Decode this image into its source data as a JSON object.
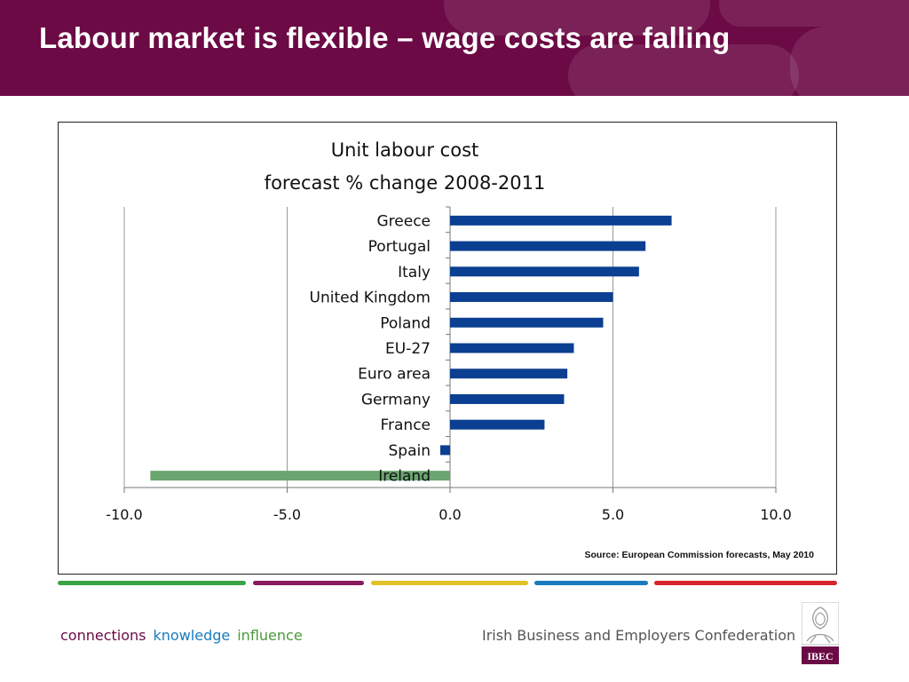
{
  "slide": {
    "title": "Labour market is flexible – wage costs are falling"
  },
  "chart_data": {
    "type": "bar",
    "orientation": "horizontal",
    "title": "Unit labour cost",
    "subtitle": "forecast % change 2008-2011",
    "categories": [
      "Greece",
      "Portugal",
      "Italy",
      "United Kingdom",
      "Poland",
      "EU-27",
      "Euro area",
      "Germany",
      "France",
      "Spain",
      "Ireland"
    ],
    "values": [
      6.8,
      6.0,
      5.8,
      5.0,
      4.7,
      3.8,
      3.6,
      3.5,
      2.9,
      -0.3,
      -9.2
    ],
    "bar_colors": [
      "#0b3f91",
      "#0b3f91",
      "#0b3f91",
      "#0b3f91",
      "#0b3f91",
      "#0b3f91",
      "#0b3f91",
      "#0b3f91",
      "#0b3f91",
      "#0b3f91",
      "#6aa56f"
    ],
    "xlim": [
      -10,
      10
    ],
    "xticks": [
      -10,
      -5,
      0,
      5,
      10
    ],
    "xtick_labels": [
      "-10.0",
      "-5.0",
      "0.0",
      "5.0",
      "10.0"
    ],
    "grid": "vertical",
    "source": "Source: European Commission forecasts, May 2010"
  },
  "footer": {
    "tagline": [
      {
        "text": "connections",
        "color": "#6b0a45"
      },
      {
        "text": "knowledge",
        "color": "#1a7bbf"
      },
      {
        "text": "influence",
        "color": "#4a9a3a"
      }
    ],
    "organisation": "Irish Business and Employers Confederation",
    "logo_text": "IBEC"
  },
  "stripe_colors": [
    "#3aa346",
    "#8a1a5c",
    "#e0c227",
    "#1a7bbf",
    "#d8242c"
  ]
}
